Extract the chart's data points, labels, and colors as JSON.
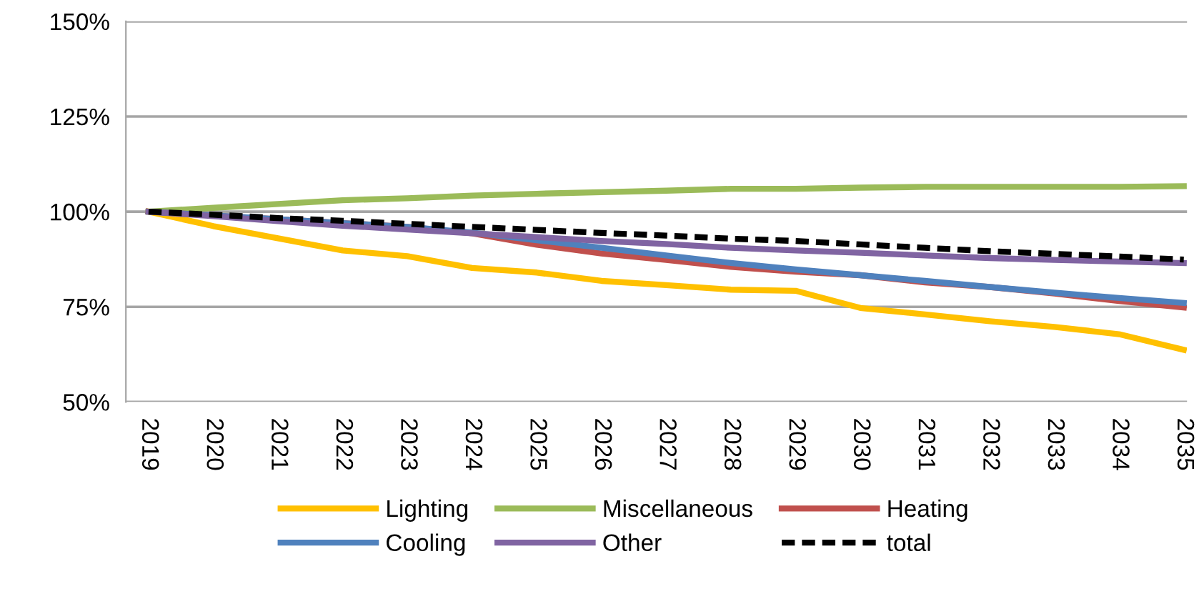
{
  "chart_data": {
    "type": "line",
    "categories": [
      "2019",
      "2020",
      "2021",
      "2022",
      "2023",
      "2024",
      "2025",
      "2026",
      "2027",
      "2028",
      "2029",
      "2030",
      "2031",
      "2032",
      "2033",
      "2034",
      "2035"
    ],
    "series": [
      {
        "name": "Lighting",
        "color": "#ffc000",
        "values": [
          100,
          96.2,
          93,
          89.8,
          88.3,
          85.2,
          84,
          81.8,
          80.7,
          79.5,
          79.2,
          74.7,
          73,
          71.2,
          69.7,
          67.8,
          63.7
        ]
      },
      {
        "name": "Miscellaneous",
        "color": "#9bbb59",
        "values": [
          100,
          101,
          102,
          103,
          103.5,
          104.2,
          104.7,
          105.1,
          105.5,
          106,
          106,
          106.3,
          106.5,
          106.5,
          106.5,
          106.5,
          106.7
        ]
      },
      {
        "name": "Heating",
        "color": "#c0504d",
        "values": [
          100,
          99,
          98,
          97,
          96,
          94.3,
          91.3,
          89,
          87.3,
          85.5,
          84.2,
          83.3,
          81.4,
          80.2,
          78.5,
          76.5,
          74.8
        ]
      },
      {
        "name": "Cooling",
        "color": "#4f81bd",
        "values": [
          100,
          99,
          98,
          97,
          96,
          94.5,
          92.5,
          90.5,
          88.5,
          86.5,
          84.8,
          83.3,
          81.8,
          80.2,
          78.7,
          77.3,
          76
        ]
      },
      {
        "name": "Other",
        "color": "#8064a2",
        "values": [
          100,
          98.8,
          97.5,
          96.3,
          95.3,
          94.3,
          93.3,
          92.3,
          91.5,
          90.5,
          89.8,
          89.2,
          88.5,
          87.8,
          87.3,
          86.9,
          86.5
        ]
      },
      {
        "name": "total",
        "color": "#000000",
        "line_style": "dashed",
        "values": [
          100,
          99.2,
          98.3,
          97.6,
          96.8,
          96,
          95.2,
          94.4,
          93.7,
          92.9,
          92.3,
          91.4,
          90.5,
          89.6,
          88.9,
          88.2,
          87.4
        ]
      }
    ],
    "ylim": [
      50,
      150
    ],
    "yticks": [
      {
        "value": 50,
        "label": "50%"
      },
      {
        "value": 75,
        "label": "75%"
      },
      {
        "value": 100,
        "label": "100%"
      },
      {
        "value": 125,
        "label": "125%"
      },
      {
        "value": 150,
        "label": "150%"
      }
    ],
    "grid": "y",
    "legend": "bottom",
    "line_style": "solid"
  }
}
